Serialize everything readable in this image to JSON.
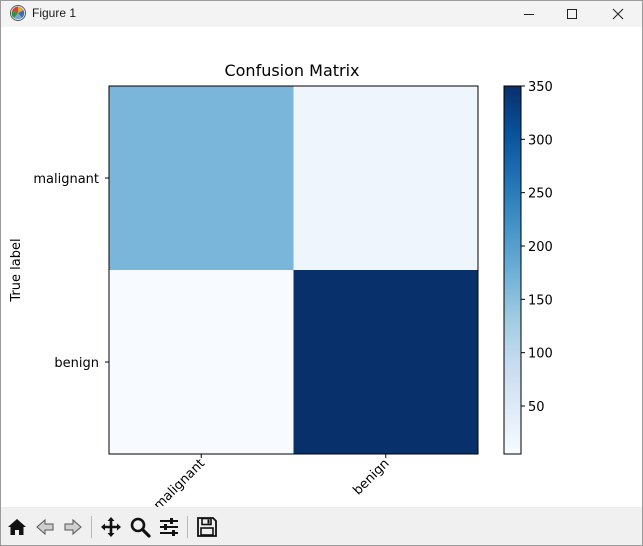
{
  "window": {
    "title": "Figure 1"
  },
  "titlebar_buttons": [
    "minimize",
    "maximize",
    "close"
  ],
  "toolbar": {
    "buttons": [
      {
        "name": "home-icon",
        "label": "Home"
      },
      {
        "name": "back-icon",
        "label": "Back"
      },
      {
        "name": "forward-icon",
        "label": "Forward"
      },
      {
        "name": "pan-icon",
        "label": "Pan"
      },
      {
        "name": "zoom-icon",
        "label": "Zoom"
      },
      {
        "name": "configure-subplots-icon",
        "label": "Configure subplots"
      },
      {
        "name": "save-icon",
        "label": "Save"
      }
    ]
  },
  "chart_data": {
    "type": "heatmap",
    "title": "Confusion Matrix",
    "ylabel": "True label",
    "xlabel": "",
    "x_categories": [
      "malignant",
      "benign"
    ],
    "y_categories": [
      "malignant",
      "benign"
    ],
    "values": [
      [
        165,
        20
      ],
      [
        5,
        350
      ]
    ],
    "colormap": "Blues",
    "vmin": 5,
    "vmax": 350,
    "colorbar_ticks": [
      50,
      100,
      150,
      200,
      250,
      300,
      350
    ],
    "colorbar_tick_labels": [
      "50",
      "100",
      "150",
      "200",
      "250",
      "300",
      "350"
    ]
  }
}
